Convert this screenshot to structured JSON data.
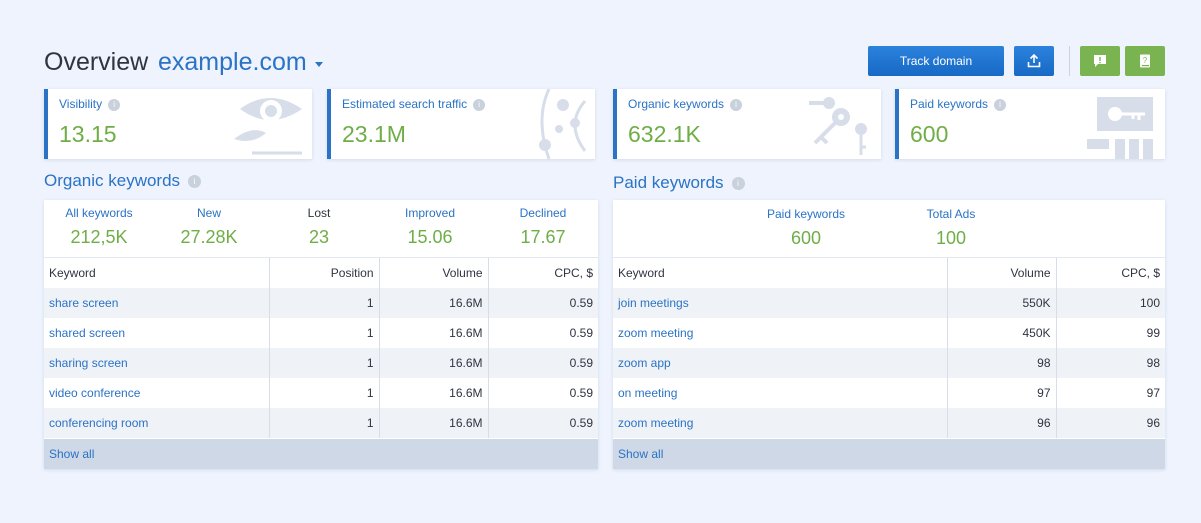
{
  "header": {
    "title": "Overview",
    "domain": "example.com",
    "track_label": "Track domain"
  },
  "colors": {
    "accent": "#2a73c5",
    "positive": "#6fae47",
    "action_green": "#7ab450"
  },
  "cards": [
    {
      "label": "Visibility",
      "value": "13.15",
      "icon": "eye-icon"
    },
    {
      "label": "Estimated search traffic",
      "value": "23.1M",
      "icon": "traffic-icon"
    },
    {
      "label": "Organic  keywords",
      "value": "632.1K",
      "icon": "keys-icon"
    },
    {
      "label": "Paid keywords",
      "value": "600",
      "icon": "paid-keys-icon"
    }
  ],
  "organic": {
    "title": "Organic  keywords",
    "stats": [
      {
        "label": "All keywords",
        "value": "212,5K"
      },
      {
        "label": "New",
        "value": "27.28K"
      },
      {
        "label": "Lost",
        "value": "23"
      },
      {
        "label": "Improved",
        "value": "15.06"
      },
      {
        "label": "Declined",
        "value": "17.67"
      }
    ],
    "columns": [
      "Keyword",
      "Position",
      "Volume",
      "CPC, $"
    ],
    "rows": [
      [
        "share screen",
        "1",
        "16.6M",
        "0.59"
      ],
      [
        "shared screen",
        "1",
        "16.6M",
        "0.59"
      ],
      [
        "sharing screen",
        "1",
        "16.6M",
        "0.59"
      ],
      [
        "video conference",
        "1",
        "16.6M",
        "0.59"
      ],
      [
        "conferencing room",
        "1",
        "16.6M",
        "0.59"
      ]
    ],
    "show_all": "Show all"
  },
  "paid": {
    "title": "Paid keywords",
    "stats": [
      {
        "label": "Paid keywords",
        "value": "600"
      },
      {
        "label": "Total Ads",
        "value": "100"
      }
    ],
    "columns": [
      "Keyword",
      "Volume",
      "CPC, $"
    ],
    "rows": [
      [
        "join meetings",
        "550K",
        "100"
      ],
      [
        "zoom meeting",
        "450K",
        "99"
      ],
      [
        "zoom app",
        "98",
        "98"
      ],
      [
        "on meeting",
        "97",
        "97"
      ],
      [
        "zoom meeting",
        "96",
        "96"
      ]
    ],
    "show_all": "Show all"
  }
}
